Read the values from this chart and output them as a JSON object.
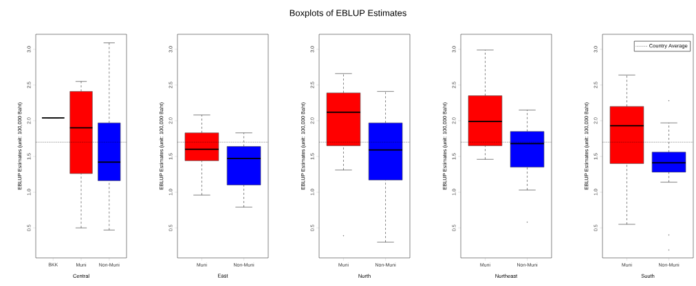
{
  "chart_data": [
    {
      "type": "box",
      "xlabel": "Central",
      "ylabel": "EBLUP Estimates (unit: 100,000 Baht)",
      "categories": [
        "BKK",
        "Muni",
        "Non-Muni"
      ],
      "colors": [
        null,
        "#ff0000",
        "#0000ff"
      ],
      "boxes": [
        {
          "low": 2.04,
          "q1": 2.04,
          "median": 2.04,
          "q3": 2.04,
          "high": 2.04
        },
        {
          "low": 0.5,
          "q1": 1.26,
          "median": 1.9,
          "q3": 2.41,
          "high": 2.55
        },
        {
          "low": 0.47,
          "q1": 1.16,
          "median": 1.42,
          "q3": 1.97,
          "high": 3.09
        }
      ],
      "ylim": [
        0.08,
        3.21
      ],
      "yticks": [
        {
          "value": 0.5,
          "label": "0.5"
        },
        {
          "value": 1.0,
          "label": "1.0"
        },
        {
          "value": 1.5,
          "label": "1.5"
        },
        {
          "value": 2.0,
          "label": "2.0"
        },
        {
          "value": 2.5,
          "label": "2.5"
        },
        {
          "value": 3.0,
          "label": "3.0"
        }
      ],
      "ref_lines": [
        {
          "axis": "y",
          "value": 1.7,
          "line_style": "dotted"
        }
      ]
    },
    {
      "type": "box",
      "xlabel": "East",
      "ylabel": "EBLUP Estimates (unit: 100,000 Baht)",
      "categories": [
        "Muni",
        "Non-Muni"
      ],
      "colors": [
        "#ff0000",
        "#0000ff"
      ],
      "boxes": [
        {
          "low": 0.96,
          "q1": 1.44,
          "median": 1.6,
          "q3": 1.83,
          "high": 2.08
        },
        {
          "low": 0.79,
          "q1": 1.1,
          "median": 1.47,
          "q3": 1.64,
          "high": 1.83
        }
      ],
      "ylim": [
        0.08,
        3.21
      ],
      "yticks": [
        {
          "value": 0.5,
          "label": "0.5"
        },
        {
          "value": 1.0,
          "label": "1.0"
        },
        {
          "value": 1.5,
          "label": "1.5"
        },
        {
          "value": 2.0,
          "label": "2.0"
        },
        {
          "value": 2.5,
          "label": "2.5"
        },
        {
          "value": 3.0,
          "label": "3.0"
        }
      ],
      "ref_lines": [
        {
          "axis": "y",
          "value": 1.7,
          "line_style": "dotted"
        }
      ]
    },
    {
      "type": "box",
      "title": "Boxplots of EBLUP Estimates",
      "xlabel": "North",
      "ylabel": "EBLUP Estimates (unit: 100,000 Baht)",
      "categories": [
        "Muni",
        "Non-Muni"
      ],
      "colors": [
        "#ff0000",
        "#0000ff"
      ],
      "boxes": [
        {
          "low": 1.31,
          "q1": 1.65,
          "median": 2.12,
          "q3": 2.39,
          "high": 2.66,
          "outliers": [
            0.39
          ]
        },
        {
          "low": 0.3,
          "q1": 1.17,
          "median": 1.59,
          "q3": 1.97,
          "high": 2.41
        }
      ],
      "ylim": [
        0.08,
        3.21
      ],
      "yticks": [
        {
          "value": 0.5,
          "label": "0.5"
        },
        {
          "value": 1.0,
          "label": "1.0"
        },
        {
          "value": 1.5,
          "label": "1.5"
        },
        {
          "value": 2.0,
          "label": "2.0"
        },
        {
          "value": 2.5,
          "label": "2.5"
        },
        {
          "value": 3.0,
          "label": "3.0"
        }
      ],
      "ref_lines": [
        {
          "axis": "y",
          "value": 1.7,
          "line_style": "dotted"
        }
      ]
    },
    {
      "type": "box",
      "xlabel": "Northeast",
      "ylabel": "EBLUP Estimates (unit: 100,000 Baht)",
      "categories": [
        "Muni",
        "Non-Muni"
      ],
      "colors": [
        "#ff0000",
        "#0000ff"
      ],
      "boxes": [
        {
          "low": 1.46,
          "q1": 1.65,
          "median": 1.99,
          "q3": 2.35,
          "high": 2.99
        },
        {
          "low": 1.03,
          "q1": 1.35,
          "median": 1.68,
          "q3": 1.85,
          "high": 2.15,
          "outliers": [
            0.58
          ]
        }
      ],
      "ylim": [
        0.08,
        3.21
      ],
      "yticks": [
        {
          "value": 0.5,
          "label": "0.5"
        },
        {
          "value": 1.0,
          "label": "1.0"
        },
        {
          "value": 1.5,
          "label": "1.5"
        },
        {
          "value": 2.0,
          "label": "2.0"
        },
        {
          "value": 2.5,
          "label": "2.5"
        },
        {
          "value": 3.0,
          "label": "3.0"
        }
      ],
      "ref_lines": [
        {
          "axis": "y",
          "value": 1.7,
          "line_style": "dotted"
        }
      ]
    },
    {
      "type": "box",
      "xlabel": "South",
      "ylabel": "EBLUP Estimates (unit: 100,000 Baht)",
      "categories": [
        "Muni",
        "Non-Muni"
      ],
      "colors": [
        "#ff0000",
        "#0000ff"
      ],
      "boxes": [
        {
          "low": 0.55,
          "q1": 1.4,
          "median": 1.93,
          "q3": 2.2,
          "high": 2.64
        },
        {
          "low": 1.14,
          "q1": 1.28,
          "median": 1.41,
          "q3": 1.56,
          "high": 1.97,
          "outliers": [
            2.28,
            0.4,
            0.19
          ]
        }
      ],
      "ylim": [
        0.08,
        3.21
      ],
      "yticks": [
        {
          "value": 0.5,
          "label": "0.5"
        },
        {
          "value": 1.0,
          "label": "1.0"
        },
        {
          "value": 1.5,
          "label": "1.5"
        },
        {
          "value": 2.0,
          "label": "2.0"
        },
        {
          "value": 2.5,
          "label": "2.5"
        },
        {
          "value": 3.0,
          "label": "3.0"
        }
      ],
      "ref_lines": [
        {
          "axis": "y",
          "value": 1.7,
          "label": "Country Average",
          "line_style": "dotted"
        }
      ],
      "legend": "top right"
    }
  ]
}
